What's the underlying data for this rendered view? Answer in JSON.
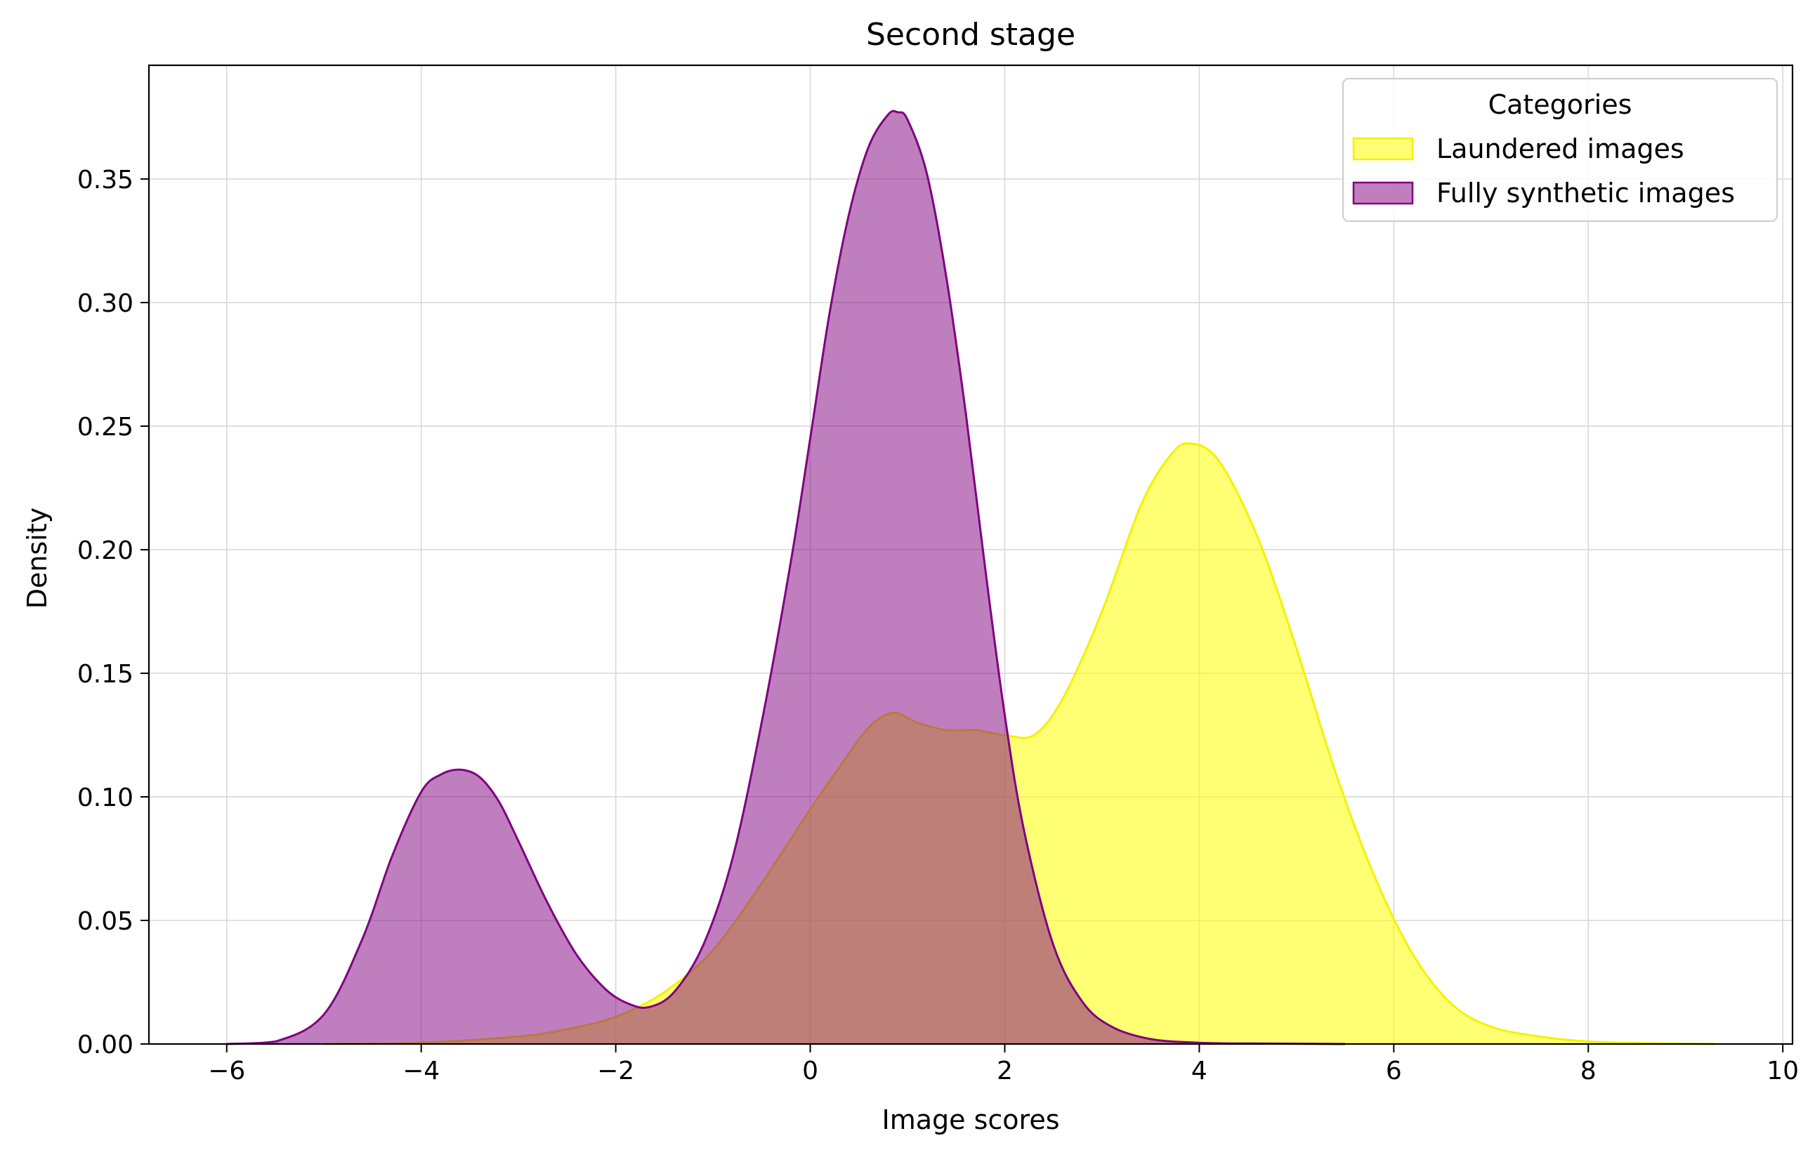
{
  "chart_data": {
    "type": "area",
    "title": "Second stage",
    "xlabel": "Image scores",
    "ylabel": "Density",
    "xlim": [
      -6.8,
      10.1
    ],
    "ylim": [
      0,
      0.396
    ],
    "xticks": [
      -6,
      -4,
      -2,
      0,
      2,
      4,
      6,
      8,
      10
    ],
    "xtick_labels": [
      "−6",
      "−4",
      "−2",
      "0",
      "2",
      "4",
      "6",
      "8",
      "10"
    ],
    "yticks": [
      0.0,
      0.05,
      0.1,
      0.15,
      0.2,
      0.25,
      0.3,
      0.35
    ],
    "ytick_labels": [
      "0.00",
      "0.05",
      "0.10",
      "0.15",
      "0.20",
      "0.25",
      "0.30",
      "0.35"
    ],
    "grid": true,
    "legend": {
      "title": "Categories",
      "placement": "top-right",
      "entries": [
        "Laundered images",
        "Fully synthetic images"
      ]
    },
    "series": [
      {
        "name": "Laundered images",
        "fill": "#ffff00",
        "stroke": "#f2f200",
        "fill_opacity": 0.55,
        "x": [
          -5.0,
          -4.0,
          -3.0,
          -2.5,
          -2.0,
          -1.5,
          -1.0,
          -0.5,
          0.0,
          0.3,
          0.6,
          0.85,
          1.1,
          1.4,
          1.7,
          2.0,
          2.3,
          2.6,
          3.0,
          3.4,
          3.7,
          3.9,
          4.2,
          4.6,
          5.0,
          5.4,
          5.8,
          6.2,
          6.6,
          7.0,
          7.5,
          8.0,
          8.5,
          9.3
        ],
        "values": [
          0.0,
          0.0005,
          0.003,
          0.006,
          0.011,
          0.021,
          0.038,
          0.065,
          0.095,
          0.112,
          0.128,
          0.134,
          0.13,
          0.127,
          0.127,
          0.125,
          0.125,
          0.14,
          0.175,
          0.218,
          0.238,
          0.243,
          0.236,
          0.205,
          0.16,
          0.11,
          0.068,
          0.036,
          0.016,
          0.007,
          0.003,
          0.001,
          0.0004,
          0.0
        ]
      },
      {
        "name": "Fully synthetic images",
        "fill": "#800080",
        "stroke": "#800080",
        "fill_opacity": 0.5,
        "x": [
          -6.0,
          -5.5,
          -5.0,
          -4.6,
          -4.3,
          -4.0,
          -3.8,
          -3.6,
          -3.4,
          -3.2,
          -3.0,
          -2.7,
          -2.4,
          -2.1,
          -1.85,
          -1.65,
          -1.4,
          -1.1,
          -0.8,
          -0.5,
          -0.2,
          0.0,
          0.2,
          0.4,
          0.6,
          0.8,
          0.9,
          1.0,
          1.2,
          1.4,
          1.6,
          1.8,
          2.0,
          2.2,
          2.5,
          2.8,
          3.1,
          3.5,
          4.0,
          4.5,
          5.0,
          5.5
        ],
        "values": [
          0.0,
          0.001,
          0.012,
          0.043,
          0.076,
          0.102,
          0.109,
          0.111,
          0.108,
          0.098,
          0.082,
          0.057,
          0.036,
          0.022,
          0.016,
          0.015,
          0.021,
          0.04,
          0.075,
          0.13,
          0.195,
          0.245,
          0.296,
          0.336,
          0.363,
          0.376,
          0.377,
          0.374,
          0.352,
          0.31,
          0.255,
          0.192,
          0.133,
          0.086,
          0.04,
          0.017,
          0.007,
          0.002,
          0.0005,
          0.0002,
          0.0001,
          0.0
        ]
      }
    ]
  }
}
